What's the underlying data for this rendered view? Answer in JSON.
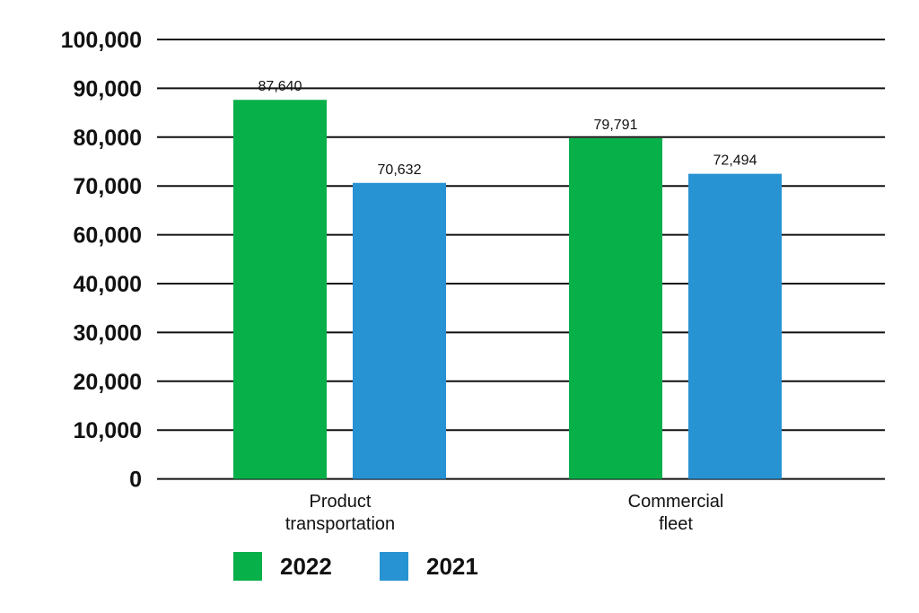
{
  "colors": {
    "series_2022": "#08b04a",
    "series_2021": "#2893d3",
    "grid": "#111111"
  },
  "chart_data": {
    "type": "bar",
    "title": "",
    "xlabel": "",
    "ylabel": "",
    "categories": [
      [
        "Product",
        "transportation"
      ],
      [
        "Commercial",
        "fleet"
      ]
    ],
    "y_ticks": [
      "100,000",
      "90,000",
      "80,000",
      "70,000",
      "60,000",
      "40,000",
      "30,000",
      "20,000",
      "10,000",
      "0"
    ],
    "series": [
      {
        "name": "2022",
        "values": [
          87640,
          79791
        ],
        "labels": [
          "87,640",
          "79,791"
        ]
      },
      {
        "name": "2021",
        "values": [
          70632,
          72494
        ],
        "labels": [
          "70,632",
          "72,494"
        ]
      }
    ],
    "grid": true,
    "legend_position": "bottom-left"
  }
}
